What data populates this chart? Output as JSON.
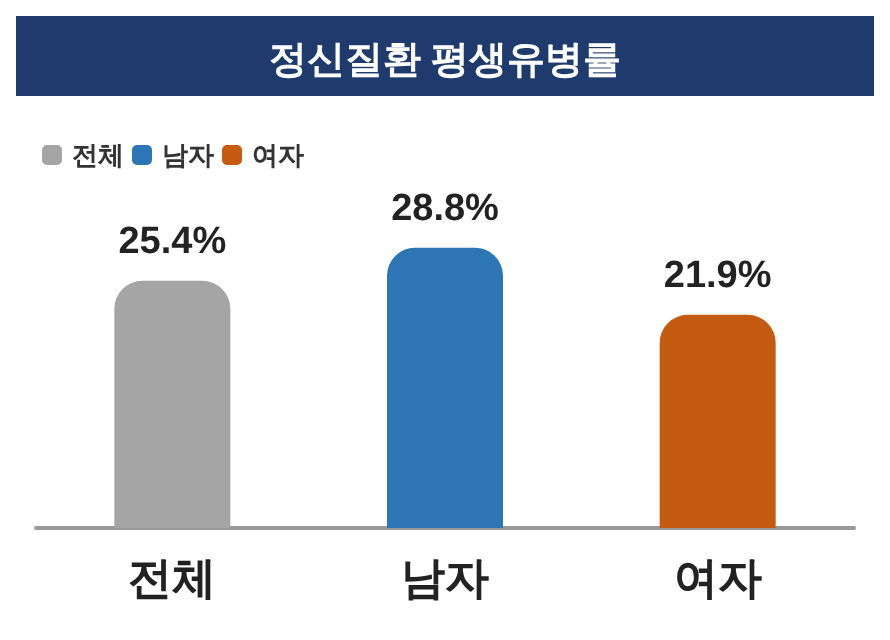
{
  "chart_data": {
    "type": "bar",
    "title": "정신질환 평생유병률",
    "categories": [
      "전체",
      "남자",
      "여자"
    ],
    "series": [
      {
        "name": "전체",
        "color": "#a5a5a5",
        "values": [
          25.4,
          null,
          null
        ],
        "value_labels": [
          "25.4%",
          null,
          null
        ]
      },
      {
        "name": "남자",
        "color": "#2e75b6",
        "values": [
          null,
          28.8,
          null
        ],
        "value_labels": [
          null,
          "28.8%",
          null
        ]
      },
      {
        "name": "여자",
        "color": "#c55a11",
        "values": [
          null,
          null,
          21.9
        ],
        "value_labels": [
          null,
          null,
          "21.9%"
        ]
      }
    ],
    "legend": "top left"
  }
}
